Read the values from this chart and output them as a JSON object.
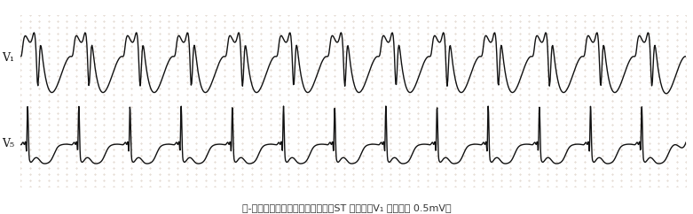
{
  "title": "慢-快型房室结内折返性心动过速、ST 段改变（V₁ 定准电压 0.5mV）",
  "bg_color": "#ffffff",
  "grid_dot_color": "#ccbbaa",
  "line_color": "#111111",
  "label_v1": "V₁",
  "label_v5": "V₅",
  "fig_width": 7.81,
  "fig_height": 2.42,
  "dpi": 100,
  "num_beats_v1": 13,
  "num_beats_v5": 13
}
